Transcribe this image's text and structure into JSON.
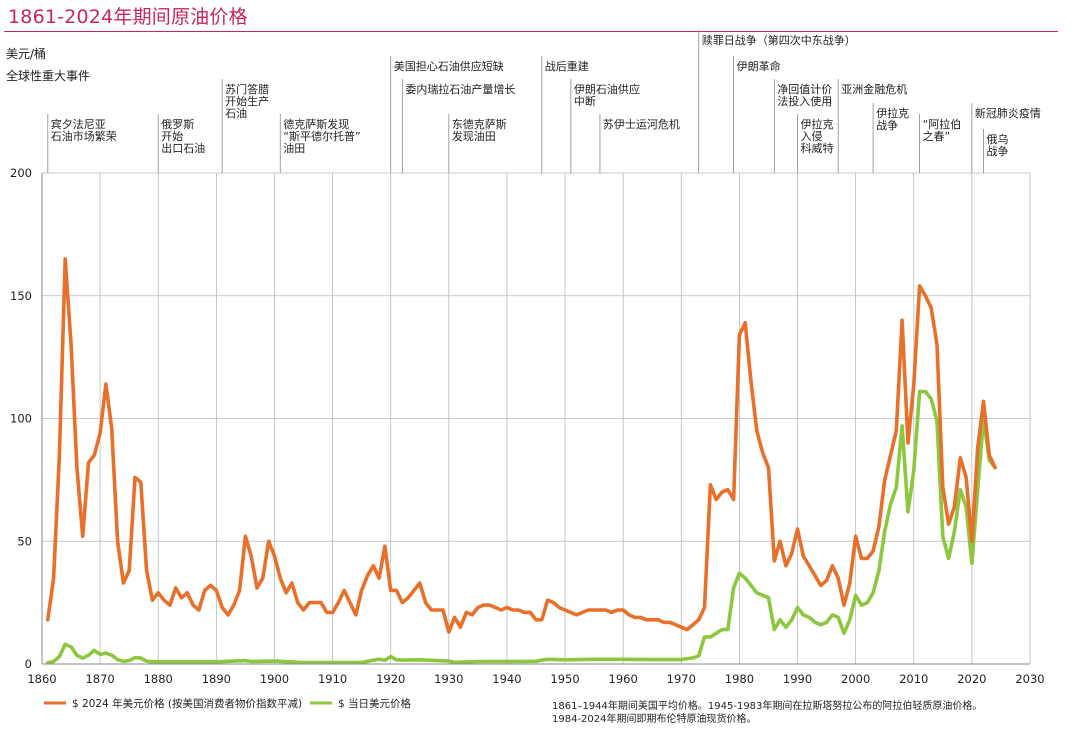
{
  "title": "1861-2024年期间原油价格",
  "chart_data": {
    "type": "line",
    "ylabel": "美元/桶",
    "events_label": "全球性重大事件",
    "xlim": [
      1860,
      2030
    ],
    "ylim": [
      0,
      200
    ],
    "xticks": [
      1860,
      1870,
      1880,
      1890,
      1900,
      1910,
      1920,
      1930,
      1940,
      1950,
      1960,
      1970,
      1980,
      1990,
      2000,
      2010,
      2020,
      2030
    ],
    "yticks": [
      0,
      50,
      100,
      150,
      200
    ],
    "grid": "vertical",
    "series": [
      {
        "name": "$ 2024 年美元价格 (按美国消费者物价指数平减)",
        "color": "#e8702a",
        "x": [
          1861,
          1862,
          1863,
          1864,
          1865,
          1866,
          1867,
          1868,
          1869,
          1870,
          1871,
          1872,
          1873,
          1874,
          1875,
          1876,
          1877,
          1878,
          1879,
          1880,
          1881,
          1882,
          1883,
          1884,
          1885,
          1886,
          1887,
          1888,
          1889,
          1890,
          1891,
          1892,
          1893,
          1894,
          1895,
          1896,
          1897,
          1898,
          1899,
          1900,
          1901,
          1902,
          1903,
          1904,
          1905,
          1906,
          1907,
          1908,
          1909,
          1910,
          1911,
          1912,
          1913,
          1914,
          1915,
          1916,
          1917,
          1918,
          1919,
          1920,
          1921,
          1922,
          1923,
          1924,
          1925,
          1926,
          1927,
          1928,
          1929,
          1930,
          1931,
          1932,
          1933,
          1934,
          1935,
          1936,
          1937,
          1938,
          1939,
          1940,
          1941,
          1942,
          1943,
          1944,
          1945,
          1946,
          1947,
          1948,
          1949,
          1950,
          1951,
          1952,
          1953,
          1954,
          1955,
          1956,
          1957,
          1958,
          1959,
          1960,
          1961,
          1962,
          1963,
          1964,
          1965,
          1966,
          1967,
          1968,
          1969,
          1970,
          1971,
          1972,
          1973,
          1974,
          1975,
          1976,
          1977,
          1978,
          1979,
          1980,
          1981,
          1982,
          1983,
          1984,
          1985,
          1986,
          1987,
          1988,
          1989,
          1990,
          1991,
          1992,
          1993,
          1994,
          1995,
          1996,
          1997,
          1998,
          1999,
          2000,
          2001,
          2002,
          2003,
          2004,
          2005,
          2006,
          2007,
          2008,
          2009,
          2010,
          2011,
          2012,
          2013,
          2014,
          2015,
          2016,
          2017,
          2018,
          2019,
          2020,
          2021,
          2022,
          2023,
          2024
        ],
        "values": [
          18,
          35,
          85,
          165,
          130,
          80,
          52,
          82,
          85,
          94,
          114,
          96,
          50,
          33,
          38,
          76,
          74,
          38,
          26,
          29,
          26,
          24,
          31,
          27,
          29,
          24,
          22,
          30,
          32,
          30,
          23,
          20,
          24,
          30,
          52,
          44,
          31,
          35,
          50,
          44,
          35,
          29,
          33,
          25,
          22,
          25,
          25,
          25,
          21,
          21,
          25,
          30,
          25,
          20,
          30,
          36,
          40,
          35,
          48,
          30,
          30,
          25,
          27,
          30,
          33,
          25,
          22,
          22,
          22,
          13,
          19,
          15,
          21,
          20,
          23,
          24,
          24,
          23,
          22,
          23,
          22,
          22,
          21,
          21,
          18,
          18,
          26,
          25,
          23,
          22,
          21,
          20,
          21,
          22,
          22,
          22,
          22,
          21,
          22,
          22,
          20,
          19,
          19,
          18,
          18,
          18,
          17,
          17,
          16,
          15,
          14,
          16,
          18,
          23,
          73,
          67,
          70,
          71,
          67,
          134,
          139,
          115,
          95,
          86,
          80,
          42,
          50,
          40,
          45,
          55,
          44,
          40,
          36,
          32,
          34,
          40,
          35,
          24,
          33,
          52,
          43,
          43,
          46,
          56,
          75,
          85,
          95,
          140,
          90,
          114,
          154,
          150,
          145,
          130,
          72,
          57,
          64,
          84,
          76,
          50,
          88,
          107,
          85,
          80
        ]
      },
      {
        "name": "$ 当日美元价格",
        "color": "#8dc63f",
        "x": [
          1861,
          1862,
          1863,
          1864,
          1865,
          1866,
          1867,
          1868,
          1869,
          1870,
          1871,
          1872,
          1873,
          1874,
          1875,
          1876,
          1877,
          1878,
          1879,
          1880,
          1885,
          1890,
          1895,
          1896,
          1900,
          1905,
          1910,
          1915,
          1918,
          1919,
          1920,
          1921,
          1922,
          1925,
          1930,
          1931,
          1935,
          1940,
          1945,
          1946,
          1947,
          1950,
          1955,
          1960,
          1965,
          1970,
          1971,
          1972,
          1973,
          1974,
          1975,
          1976,
          1977,
          1978,
          1979,
          1980,
          1981,
          1982,
          1983,
          1984,
          1985,
          1986,
          1987,
          1988,
          1989,
          1990,
          1991,
          1992,
          1993,
          1994,
          1995,
          1996,
          1997,
          1998,
          1999,
          2000,
          2001,
          2002,
          2003,
          2004,
          2005,
          2006,
          2007,
          2008,
          2009,
          2010,
          2011,
          2012,
          2013,
          2014,
          2015,
          2016,
          2017,
          2018,
          2019,
          2020,
          2021,
          2022,
          2023,
          2024
        ],
        "values": [
          0.5,
          1,
          3,
          8,
          7,
          3.5,
          2.4,
          3.6,
          5.6,
          3.9,
          4.4,
          3.6,
          1.8,
          1.1,
          1.4,
          2.6,
          2.4,
          1.2,
          0.9,
          0.9,
          0.9,
          0.9,
          1.4,
          1,
          1.2,
          0.6,
          0.6,
          0.6,
          2,
          1.5,
          3,
          1.7,
          1.6,
          1.7,
          1.2,
          0.7,
          1,
          1,
          1.1,
          1.6,
          1.9,
          1.7,
          1.9,
          1.9,
          1.8,
          1.8,
          2.2,
          2.5,
          3.3,
          11,
          11,
          12.5,
          14,
          14,
          31,
          37,
          35,
          32,
          29,
          28,
          27,
          14,
          18,
          15,
          18,
          23,
          20,
          19,
          17,
          16,
          17,
          20,
          19,
          12.5,
          18,
          28,
          24,
          25,
          29,
          38,
          54,
          65,
          72,
          97,
          62,
          79,
          111,
          111,
          108,
          99,
          52,
          43,
          54,
          71,
          64,
          41,
          71,
          100,
          83,
          80
        ]
      }
    ],
    "events": [
      {
        "x": 1861,
        "lines": [
          "宾夕法尼亚",
          "石油市场繁荣"
        ],
        "top": 128
      },
      {
        "x": 1880,
        "lines": [
          "俄罗斯",
          "开始",
          "出口石油"
        ],
        "top": 128
      },
      {
        "x": 1891,
        "lines": [
          "苏门答腊",
          "开始生产",
          "石油"
        ],
        "top": 93
      },
      {
        "x": 1901,
        "lines": [
          "德克萨斯发现",
          "“斯平德尔托普”",
          "油田"
        ],
        "top": 128
      },
      {
        "x": 1920,
        "lines": [
          "美国担心石油供应短缺"
        ],
        "top": 70
      },
      {
        "x": 1922,
        "lines": [
          "委内瑞拉石油产量增长"
        ],
        "top": 93
      },
      {
        "x": 1930,
        "lines": [
          "东德克萨斯",
          "发现油田"
        ],
        "top": 128
      },
      {
        "x": 1946,
        "lines": [
          "战后重建"
        ],
        "top": 70
      },
      {
        "x": 1951,
        "lines": [
          "伊朗石油供应",
          "中断"
        ],
        "top": 93
      },
      {
        "x": 1956,
        "lines": [
          "苏伊士运河危机"
        ],
        "top": 128
      },
      {
        "x": 1973,
        "lines": [
          "赎罪日战争（第四次中东战争）"
        ],
        "top": 44
      },
      {
        "x": 1979,
        "lines": [
          "伊朗革命"
        ],
        "top": 70
      },
      {
        "x": 1986,
        "lines": [
          "净回值计价",
          "法投入使用"
        ],
        "top": 93
      },
      {
        "x": 1990,
        "lines": [
          "伊拉克",
          "入侵",
          "科威特"
        ],
        "top": 128
      },
      {
        "x": 1997,
        "lines": [
          "亚洲金融危机"
        ],
        "top": 93
      },
      {
        "x": 2003,
        "lines": [
          "伊拉克",
          "战争"
        ],
        "top": 117
      },
      {
        "x": 2011,
        "lines": [
          "“阿拉伯",
          "之春”"
        ],
        "top": 128
      },
      {
        "x": 2020,
        "lines": [
          "新冠肺炎疫情"
        ],
        "top": 117
      },
      {
        "x": 2022,
        "lines": [
          "俄乌",
          "战争"
        ],
        "top": 143
      }
    ],
    "note_lines": [
      "1861–1944年期间美国平均价格。1945-1983年期间在拉斯塔努拉公布的阿拉伯轻质原油价格。",
      "1984-2024年期间即期布伦特原油现货价格。"
    ]
  }
}
